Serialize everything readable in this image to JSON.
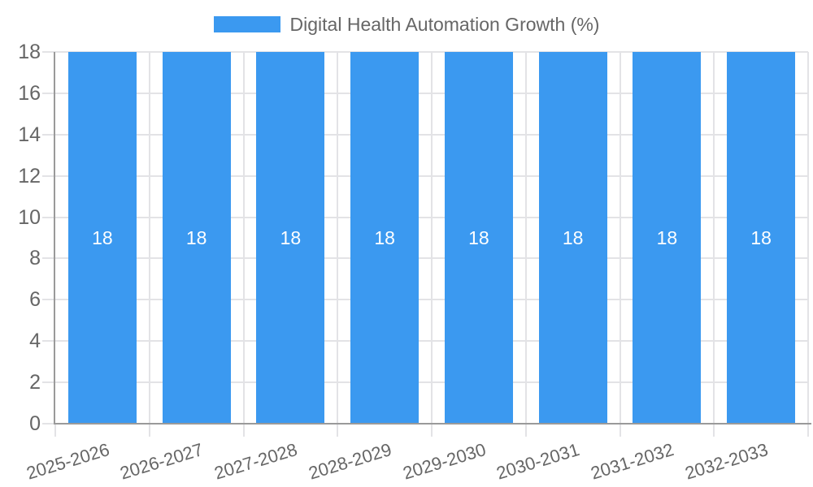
{
  "chart_data": {
    "type": "bar",
    "title": "Digital Health Automation Growth (%)",
    "categories": [
      "2025-2026",
      "2026-2027",
      "2027-2028",
      "2028-2029",
      "2029-2030",
      "2030-2031",
      "2031-2032",
      "2032-2033"
    ],
    "series": [
      {
        "name": "Digital Health Automation Growth (%)",
        "values": [
          18,
          18,
          18,
          18,
          18,
          18,
          18,
          18
        ]
      }
    ],
    "value_labels": [
      "18",
      "18",
      "18",
      "18",
      "18",
      "18",
      "18",
      "18"
    ],
    "ylim": [
      0,
      18
    ],
    "yticks": [
      0,
      2,
      4,
      6,
      8,
      10,
      12,
      14,
      16,
      18
    ],
    "xlabel": "",
    "ylabel": "",
    "grid": true,
    "legend_position": "top",
    "x_label_rotation_deg": -17,
    "colors": {
      "bar": "#3b99f0",
      "value_label": "#ffffff",
      "axis_text": "#666666",
      "grid_line": "#e3e3e6",
      "axis_line": "#9a9a9a",
      "background": "#ffffff"
    }
  },
  "legend": {
    "label": "Digital Health Automation Growth (%)"
  }
}
